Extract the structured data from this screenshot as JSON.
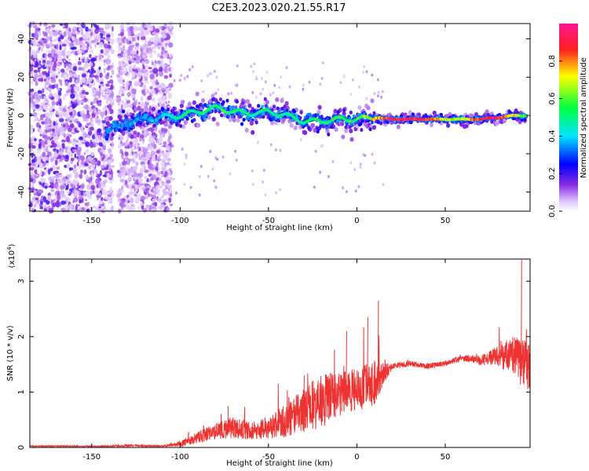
{
  "title": "C2E3.2023.020.21.55.R17",
  "chart_data": [
    {
      "type": "heatmap",
      "xlabel": "Height of straight line (km)",
      "ylabel": "Frequency (Hz)",
      "xlim": [
        -185,
        98
      ],
      "ylim": [
        -50,
        48
      ],
      "xticks": [
        -150,
        -100,
        -50,
        0,
        50
      ],
      "yticks": [
        -40,
        -20,
        0,
        20,
        40
      ],
      "colorbar": {
        "label": "Normalized spectral amplitude",
        "range": [
          0,
          1
        ],
        "ticks": [
          0.0,
          0.2,
          0.4,
          0.6,
          0.8
        ],
        "colormap": [
          "#ffffff",
          "#9b30ff",
          "#0000ff",
          "#00ffff",
          "#00ff00",
          "#ffff00",
          "#ff0000",
          "#ff1493"
        ]
      },
      "ridge": {
        "x": [
          -140,
          -130,
          -120,
          -110,
          -100,
          -90,
          -80,
          -70,
          -60,
          -50,
          -40,
          -30,
          -20,
          -10,
          0,
          10,
          20,
          30,
          40,
          50,
          60,
          70,
          80,
          90,
          95
        ],
        "freq": [
          -8,
          -4,
          -2,
          -1,
          0,
          2,
          4,
          2,
          1,
          2,
          0,
          -3,
          -3,
          -2,
          -2,
          -1,
          -2,
          -2,
          -2,
          -2,
          -2,
          -2,
          -1,
          0,
          0
        ],
        "amplitude": [
          0.35,
          0.35,
          0.35,
          0.4,
          0.5,
          0.5,
          0.55,
          0.55,
          0.5,
          0.5,
          0.5,
          0.5,
          0.55,
          0.55,
          0.55,
          0.75,
          0.95,
          0.95,
          0.9,
          0.7,
          0.7,
          0.9,
          0.95,
          0.7,
          0.55
        ]
      }
    },
    {
      "type": "line",
      "xlabel": "Height of straight line (km)",
      "ylabel": "SNR (10 * v/v)",
      "yscale_label": "(x10",
      "yscale_exp": "4",
      "yscale_suffix": ")",
      "xlim": [
        -185,
        98
      ],
      "ylim": [
        0,
        3.4
      ],
      "xticks": [
        -150,
        -100,
        -50,
        0,
        50
      ],
      "yticks": [
        0,
        1,
        2,
        3
      ],
      "color": "#ee3333",
      "envelope": {
        "x": [
          -185,
          -140,
          -130,
          -110,
          -100,
          -90,
          -80,
          -70,
          -60,
          -50,
          -40,
          -30,
          -20,
          -10,
          0,
          10,
          20,
          30,
          40,
          50,
          60,
          70,
          80,
          90,
          98
        ],
        "mean": [
          0.02,
          0.02,
          0.03,
          0.02,
          0.05,
          0.15,
          0.25,
          0.3,
          0.25,
          0.3,
          0.4,
          0.55,
          0.7,
          0.85,
          0.9,
          1.05,
          1.45,
          1.5,
          1.45,
          1.5,
          1.6,
          1.55,
          1.6,
          1.5,
          1.3
        ],
        "noise": [
          0.01,
          0.01,
          0.02,
          0.01,
          0.05,
          0.1,
          0.15,
          0.2,
          0.15,
          0.2,
          0.3,
          0.4,
          0.5,
          0.4,
          0.4,
          0.4,
          0.05,
          0.05,
          0.05,
          0.05,
          0.06,
          0.08,
          0.2,
          0.4,
          0.5
        ]
      },
      "peaks": [
        {
          "x": -73,
          "y": 0.75
        },
        {
          "x": -30,
          "y": 1.3
        },
        {
          "x": -20,
          "y": 1.15
        },
        {
          "x": -20,
          "y": 0.95
        },
        {
          "x": -6,
          "y": 2.1
        },
        {
          "x": 6,
          "y": 2.35
        },
        {
          "x": 12,
          "y": 2.65
        },
        {
          "x": 93,
          "y": 3.4
        }
      ]
    }
  ]
}
